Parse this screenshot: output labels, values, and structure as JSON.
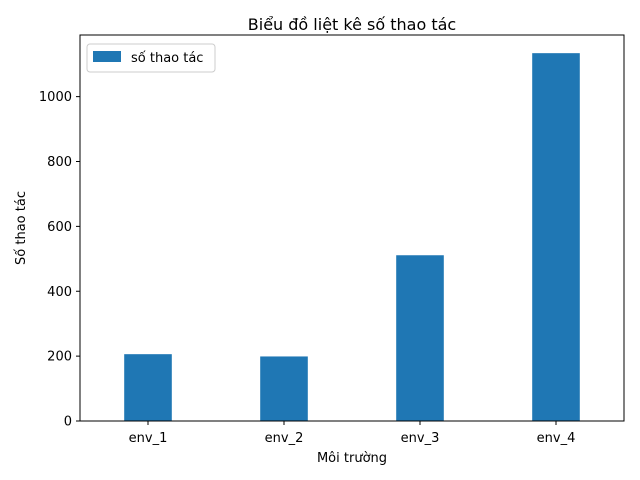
{
  "chart_data": {
    "type": "bar",
    "title": "Biểu đồ liệt kê số thao tác",
    "xlabel": "Môi trường",
    "ylabel": "Số thao tác",
    "categories": [
      "env_1",
      "env_2",
      "env_3",
      "env_4"
    ],
    "series": [
      {
        "name": "số thao tác",
        "values": [
          206,
          199,
          511,
          1134
        ],
        "color": "#1f77b4"
      }
    ],
    "ylim": [
      0,
      1190
    ],
    "yticks": [
      0,
      200,
      400,
      600,
      800,
      1000
    ],
    "grid": false,
    "legend": "top-left"
  }
}
